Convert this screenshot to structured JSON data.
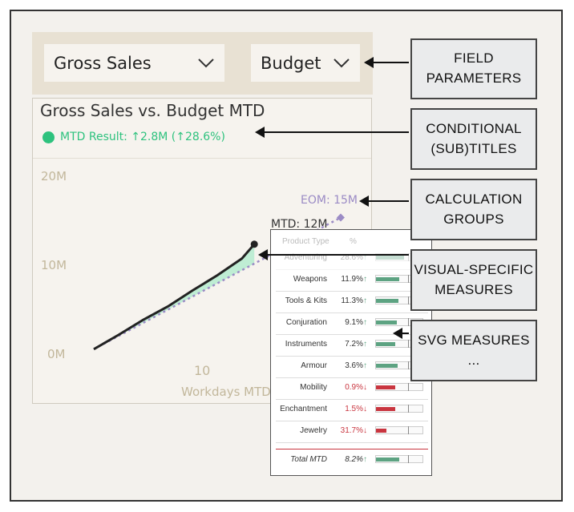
{
  "slicers": {
    "measure": "Gross Sales",
    "comparison": "Budget"
  },
  "card": {
    "title": "Gross Sales vs. Budget MTD",
    "subtitle": "MTD Result:  ↑2.8M (↑28.6%)"
  },
  "axis": {
    "y_ticks": [
      "20M",
      "10M",
      "0M"
    ],
    "x_tick": "10",
    "x_label": "Workdays MTD"
  },
  "annotations": {
    "eom": "EOM: 15M",
    "mtd": "MTD: 12M"
  },
  "chart_data": {
    "type": "line",
    "x": [
      1,
      3,
      5,
      7,
      9,
      11,
      13,
      14
    ],
    "series": [
      {
        "values": [
          0.2,
          1.8,
          3.5,
          5.0,
          6.8,
          8.5,
          10.4,
          12.0
        ]
      }
    ],
    "budget_line": {
      "x": [
        1,
        21
      ],
      "values": [
        0.2,
        15.0
      ]
    },
    "ylim": [
      0,
      20
    ],
    "xlabel": "Workdays MTD",
    "colors": {
      "actual": "#222222",
      "budget": "#9b8bc5",
      "variance_fill": "#b5ebcf"
    }
  },
  "popup": {
    "headers": [
      "Product Type",
      "%"
    ],
    "rows": [
      {
        "name": "Adventuring",
        "pct": "28.6%",
        "arrow": "↑",
        "dir": "up",
        "fill": 0.6,
        "faded": true
      },
      {
        "name": "Weapons",
        "pct": "11.9%",
        "arrow": "↑",
        "dir": "up",
        "fill": 0.5
      },
      {
        "name": "Tools & Kits",
        "pct": "11.3%",
        "arrow": "↑",
        "dir": "up",
        "fill": 0.48
      },
      {
        "name": "Conjuration",
        "pct": "9.1%",
        "arrow": "↑",
        "dir": "up",
        "fill": 0.44
      },
      {
        "name": "Instruments",
        "pct": "7.2%",
        "arrow": "↑",
        "dir": "up",
        "fill": 0.42
      },
      {
        "name": "Armour",
        "pct": "3.6%",
        "arrow": "↑",
        "dir": "up",
        "fill": 0.46
      },
      {
        "name": "Mobility",
        "pct": "0.9%",
        "arrow": "↓",
        "dir": "down",
        "fill": 0.42
      },
      {
        "name": "Enchantment",
        "pct": "1.5%",
        "arrow": "↓",
        "dir": "down",
        "fill": 0.42
      },
      {
        "name": "Jewelry",
        "pct": "31.7%",
        "arrow": "↓",
        "dir": "down",
        "fill": 0.22
      }
    ],
    "total": {
      "name": "Total MTD",
      "pct": "8.2%",
      "arrow": "↑",
      "fill": 0.5
    }
  },
  "callouts": [
    {
      "line1": "FIELD",
      "line2": "PARAMETERS"
    },
    {
      "line1": "CONDITIONAL",
      "line2": "(SUB)TITLES"
    },
    {
      "line1": "CALCULATION",
      "line2": "GROUPS"
    },
    {
      "line1": "VISUAL-SPECIFIC",
      "line2": "MEASURES"
    },
    {
      "line1": "SVG MEASURES",
      "line2": "..."
    }
  ],
  "colors": {
    "positive": "#2ec27e",
    "negative": "#c9353f",
    "eom_purple": "#9b8bc5",
    "axis_text": "#c2b79b",
    "bar_positive": "#5da382"
  }
}
